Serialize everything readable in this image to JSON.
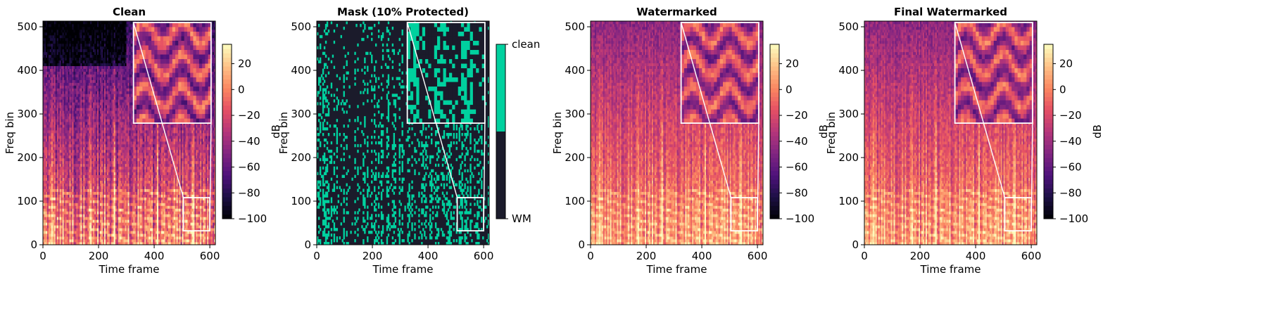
{
  "colors": {
    "magma": [
      "#000004",
      "#1c1044",
      "#4f127b",
      "#812581",
      "#b5367a",
      "#e55064",
      "#fb8761",
      "#fec287",
      "#fcfdbf"
    ],
    "mask_wm": "#1b1b2b",
    "mask_clean": "#00d19f",
    "inset_border": "#ffffff"
  },
  "chart_data": [
    {
      "type": "heatmap",
      "title": "Clean",
      "xlabel": "Time frame",
      "ylabel": "Freq bin",
      "xlim": [
        0,
        620
      ],
      "ylim": [
        0,
        513
      ],
      "xticks": [
        0,
        200,
        400,
        600
      ],
      "yticks": [
        0,
        100,
        200,
        300,
        400,
        500
      ],
      "colormap": "magma",
      "colorbar": {
        "label": "dB",
        "range": [
          -100,
          35
        ],
        "ticks": [
          20,
          0,
          -20,
          -40,
          -60,
          -80,
          -100
        ],
        "tick_labels": [
          "20",
          "0",
          "−20",
          "−40",
          "−60",
          "−80",
          "−100"
        ]
      },
      "inset": {
        "zoom_x": [
          505,
          600
        ],
        "zoom_y": [
          32,
          108
        ]
      }
    },
    {
      "type": "heatmap",
      "title": "Mask (10% Protected)",
      "xlabel": "Time frame",
      "ylabel": "Freq bin",
      "xlim": [
        0,
        620
      ],
      "ylim": [
        0,
        513
      ],
      "xticks": [
        0,
        200,
        400,
        600
      ],
      "yticks": [
        0,
        100,
        200,
        300,
        400,
        500
      ],
      "colormap": "binary",
      "colorbar": {
        "label": "",
        "categories": [
          "WM",
          "clean"
        ]
      },
      "inset": {
        "zoom_x": [
          505,
          600
        ],
        "zoom_y": [
          32,
          108
        ]
      }
    },
    {
      "type": "heatmap",
      "title": "Watermarked",
      "xlabel": "Time frame",
      "ylabel": "Freq bin",
      "xlim": [
        0,
        620
      ],
      "ylim": [
        0,
        513
      ],
      "xticks": [
        0,
        200,
        400,
        600
      ],
      "yticks": [
        0,
        100,
        200,
        300,
        400,
        500
      ],
      "colormap": "magma",
      "colorbar": {
        "label": "dB",
        "range": [
          -100,
          35
        ],
        "ticks": [
          20,
          0,
          -20,
          -40,
          -60,
          -80,
          -100
        ],
        "tick_labels": [
          "20",
          "0",
          "−20",
          "−40",
          "−60",
          "−80",
          "−100"
        ]
      },
      "inset": {
        "zoom_x": [
          505,
          600
        ],
        "zoom_y": [
          32,
          108
        ]
      }
    },
    {
      "type": "heatmap",
      "title": "Final Watermarked",
      "xlabel": "Time frame",
      "ylabel": "Freq bin",
      "xlim": [
        0,
        620
      ],
      "ylim": [
        0,
        513
      ],
      "xticks": [
        0,
        200,
        400,
        600
      ],
      "yticks": [
        0,
        100,
        200,
        300,
        400,
        500
      ],
      "colormap": "magma",
      "colorbar": {
        "label": "dB",
        "range": [
          -100,
          35
        ],
        "ticks": [
          20,
          0,
          -20,
          -40,
          -60,
          -80,
          -100
        ],
        "tick_labels": [
          "20",
          "0",
          "−20",
          "−40",
          "−60",
          "−80",
          "−100"
        ]
      },
      "inset": {
        "zoom_x": [
          505,
          600
        ],
        "zoom_y": [
          32,
          108
        ]
      }
    }
  ]
}
